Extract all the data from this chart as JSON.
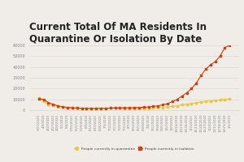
{
  "title": "Current Total Of MA Residents In\nQuarantine Or Isolation By Date",
  "title_fontsize": 8.5,
  "background_color": "#f0ede8",
  "quarantine_color": "#e8c840",
  "isolation_color": "#d04010",
  "legend_quarantine": "People currently in quarantine",
  "legend_isolation": "People currently in isolation",
  "dates": [
    "3/27/2020",
    "4/3/2020",
    "4/10/2020",
    "4/17/2020",
    "4/24/2020",
    "5/1/2020",
    "5/8/2020",
    "5/15/2020",
    "5/22/2020",
    "5/29/2020",
    "6/5/2020",
    "6/12/2020",
    "6/19/2020",
    "6/26/2020",
    "7/3/2020",
    "7/10/2020",
    "7/17/2020",
    "7/24/2020",
    "7/31/2020",
    "8/7/2020",
    "8/14/2020",
    "8/21/2020",
    "8/28/2020",
    "9/4/2020",
    "9/11/2020",
    "9/18/2020",
    "9/25/2020",
    "10/2/2020",
    "10/9/2020",
    "10/16/2020",
    "10/23/2020",
    "10/30/2020",
    "11/6/2020",
    "11/13/2020",
    "11/20/2020",
    "11/27/2020",
    "12/4/2020",
    "12/11/2020",
    "12/18/2020",
    "12/25/2020",
    "1/1/2021"
  ],
  "quarantine": [
    11000,
    8000,
    5500,
    4500,
    3500,
    2800,
    2200,
    2000,
    1800,
    1600,
    1500,
    1500,
    1600,
    1700,
    1800,
    1900,
    1900,
    1900,
    1800,
    1700,
    1700,
    1700,
    1700,
    1800,
    2000,
    2200,
    2500,
    3000,
    3500,
    4000,
    5000,
    5500,
    6000,
    7000,
    7500,
    8000,
    8500,
    9000,
    9500,
    10000,
    10500
  ],
  "isolation": [
    10500,
    10000,
    7000,
    5500,
    4000,
    3200,
    2500,
    2200,
    2000,
    1800,
    1700,
    1600,
    1600,
    1700,
    1800,
    1900,
    2000,
    2100,
    2100,
    2200,
    2300,
    2500,
    2700,
    3000,
    3500,
    4000,
    5000,
    6000,
    8000,
    10000,
    13000,
    16000,
    20000,
    25000,
    32000,
    38000,
    42000,
    45000,
    50000,
    58000,
    60000
  ],
  "ylim": [
    0,
    60000
  ],
  "yticks": [
    0,
    10000,
    20000,
    30000,
    40000,
    50000,
    60000
  ],
  "grid_color": "#e0ddd8",
  "tick_color": "#888888"
}
